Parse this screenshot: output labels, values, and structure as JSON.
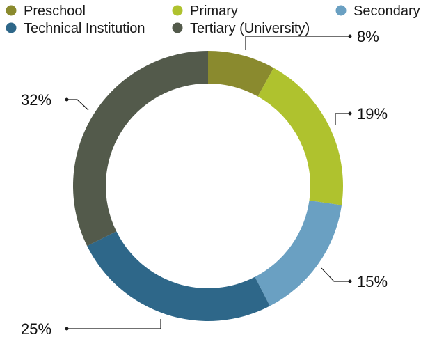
{
  "chart_data": {
    "type": "pie",
    "variant": "donut",
    "title": "",
    "legend_position": "top",
    "slices": [
      {
        "label": "Preschool",
        "value": 8,
        "value_label": "8%",
        "color": "#8a8a2e"
      },
      {
        "label": "Primary",
        "value": 19,
        "value_label": "19%",
        "color": "#afc22e"
      },
      {
        "label": "Secondary",
        "value": 15,
        "value_label": "15%",
        "color": "#6aa0c2"
      },
      {
        "label": "Technical Institution",
        "value": 25,
        "value_label": "25%",
        "color": "#2e6789"
      },
      {
        "label": "Tertiary (University)",
        "value": 32,
        "value_label": "32%",
        "color": "#535a4b"
      }
    ]
  }
}
